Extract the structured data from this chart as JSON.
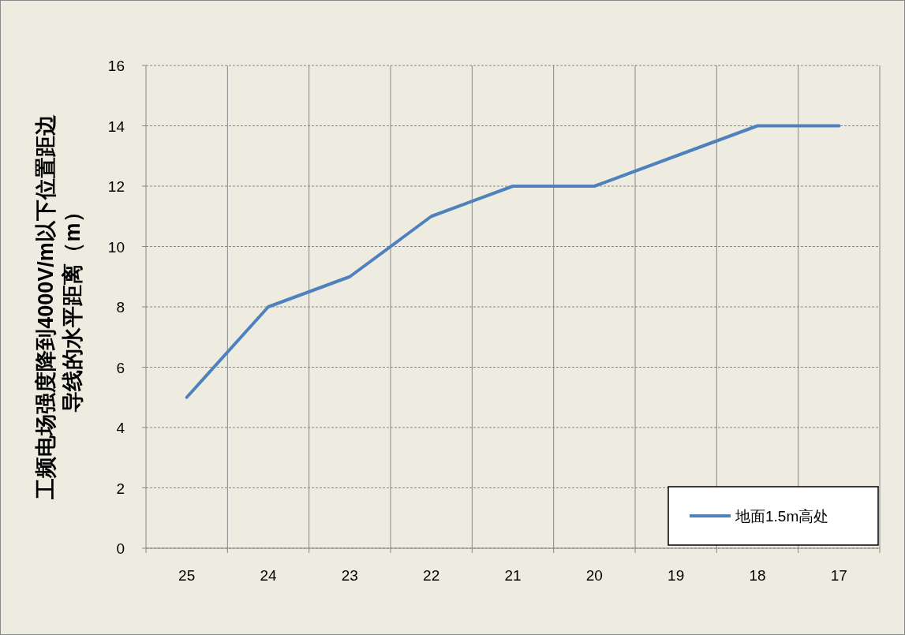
{
  "chart_data": {
    "type": "line",
    "ylabel": "工频电场强度降到4000V/m以下位置距边导线的水平距离（m）",
    "categories": [
      "25",
      "24",
      "23",
      "22",
      "21",
      "20",
      "19",
      "18",
      "17"
    ],
    "series": [
      {
        "name": "地面1.5m高处",
        "color": "#4f81bd",
        "values": [
          5,
          8,
          9,
          11,
          12,
          12,
          13,
          14,
          14
        ]
      }
    ],
    "ylim": [
      0,
      16
    ],
    "yticks": [
      0,
      2,
      4,
      6,
      8,
      10,
      12,
      14,
      16
    ],
    "grid": true,
    "legend": "bottom right",
    "marker": "none",
    "line_style": "solid"
  }
}
